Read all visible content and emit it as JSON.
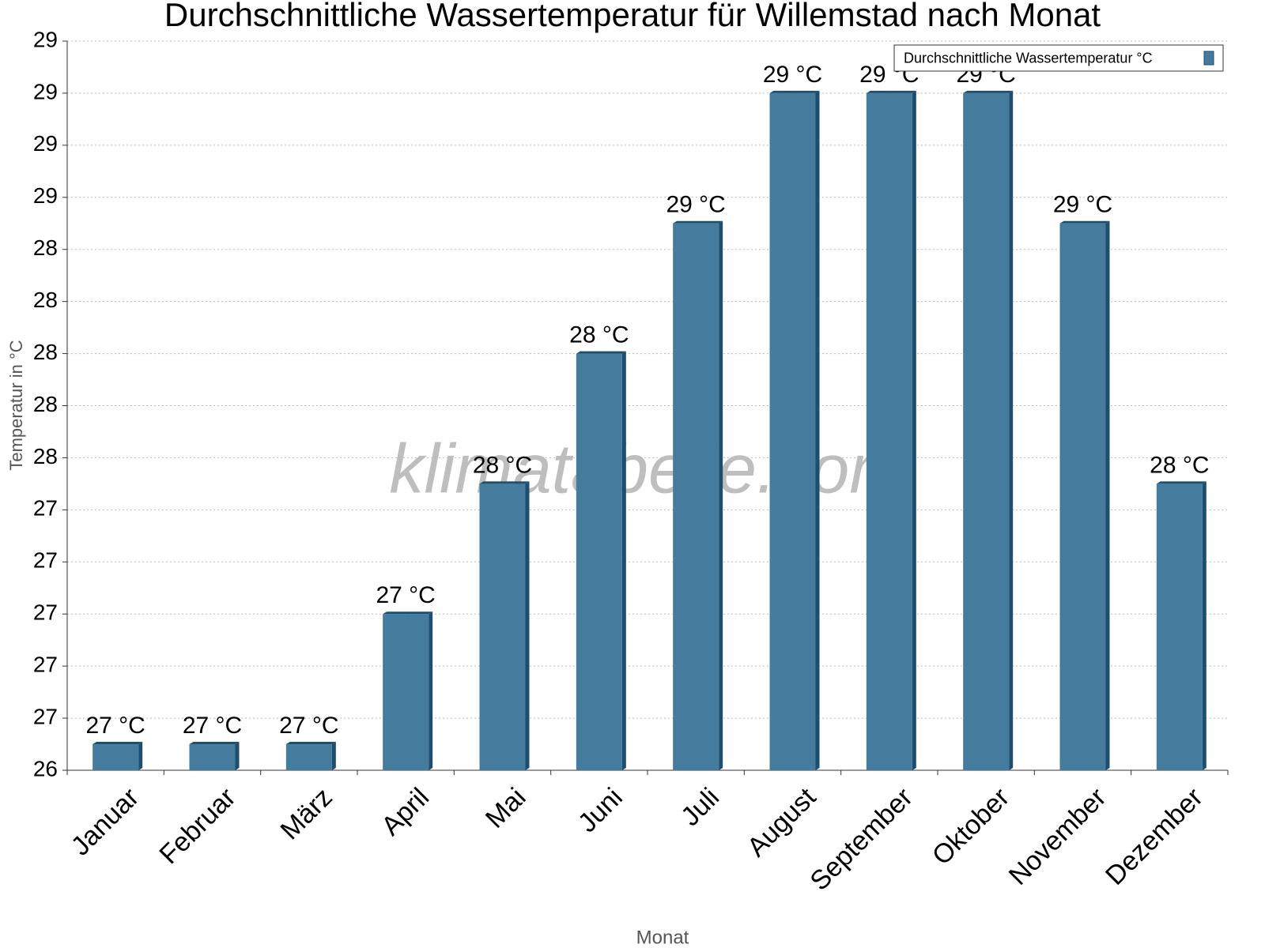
{
  "chart_data": {
    "type": "bar",
    "title": "Durchschnittliche Wassertemperatur für Willemstad nach Monat",
    "x_label": "Monat",
    "y_label": "Temperatur in °C",
    "watermark": "klimatabelle.com",
    "categories": [
      "Januar",
      "Februar",
      "März",
      "April",
      "Mai",
      "Juni",
      "Juli",
      "August",
      "September",
      "Oktober",
      "November",
      "Dezember"
    ],
    "series": [
      {
        "name": "Durchschnittliche Wassertemperatur °C",
        "color": "#457b9d",
        "values": [
          26.5,
          26.5,
          26.5,
          27.0,
          27.5,
          28.0,
          28.5,
          29.0,
          29.0,
          29.0,
          28.5,
          27.5
        ],
        "value_labels": [
          "27 °C",
          "27 °C",
          "27 °C",
          "27 °C",
          "28 °C",
          "28 °C",
          "29 °C",
          "29 °C",
          "29 °C",
          "29 °C",
          "29 °C",
          "28 °C"
        ]
      }
    ],
    "ylim": [
      26.4,
      29.2
    ],
    "yticks": [
      {
        "value": 26.4,
        "label": "26"
      },
      {
        "value": 26.6,
        "label": "27"
      },
      {
        "value": 26.8,
        "label": "27"
      },
      27,
      {
        "value": 27.2,
        "label": "27"
      },
      {
        "value": 27.4,
        "label": "27"
      },
      {
        "value": 27.6,
        "label": "28"
      },
      {
        "value": 27.8,
        "label": "28"
      },
      28,
      {
        "value": 28.2,
        "label": "28"
      },
      {
        "value": 28.4,
        "label": "28"
      },
      {
        "value": 28.6,
        "label": "29"
      },
      {
        "value": 28.8,
        "label": "29"
      },
      29,
      {
        "value": 29.2,
        "label": "29"
      }
    ],
    "grid": true,
    "legend": "top-right"
  }
}
